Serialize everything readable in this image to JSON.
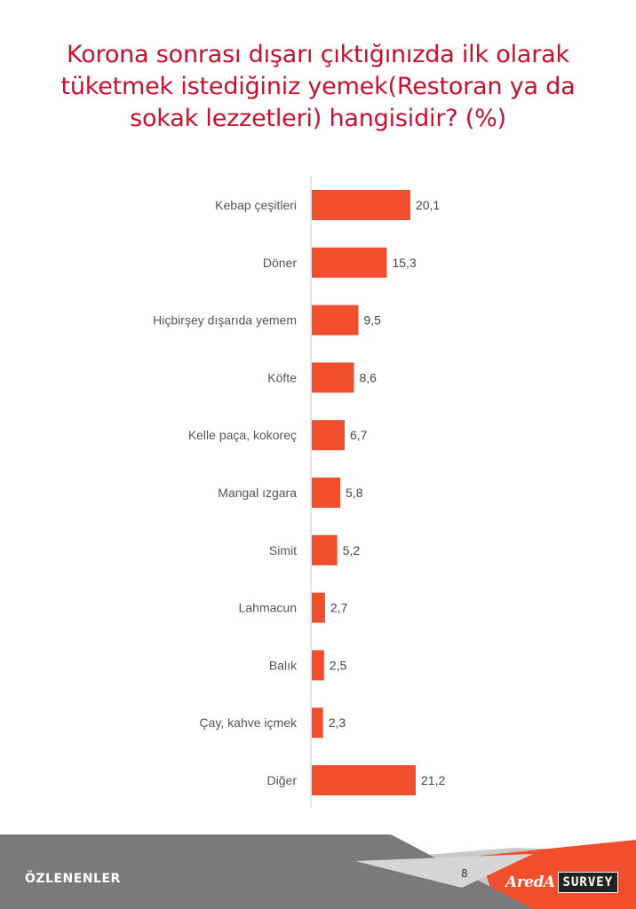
{
  "title": "Korona sonrası dışarı çıktığınızda ilk olarak tüketmek istediğiniz yemek(Restoran ya da sokak lezzetleri) hangisidir? (%)",
  "chart_data": {
    "type": "bar",
    "orientation": "horizontal",
    "title": "Korona sonrası dışarı çıktığınızda ilk olarak tüketmek istediğiniz yemek(Restoran ya da sokak lezzetleri) hangisidir? (%)",
    "categories": [
      "Kebap çeşitleri",
      "Döner",
      "Hiçbirşey dışarıda yemem",
      "Köfte",
      "Kelle paça, kokoreç",
      "Mangal ızgara",
      "Simit",
      "Lahmacun",
      "Balık",
      "Çay, kahve içmek",
      "Diğer"
    ],
    "values": [
      20.1,
      15.3,
      9.5,
      8.6,
      6.7,
      5.8,
      5.2,
      2.7,
      2.5,
      2.3,
      21.2
    ],
    "value_labels": [
      "20,1",
      "15,3",
      "9,5",
      "8,6",
      "6,7",
      "5,8",
      "5,2",
      "2,7",
      "2,5",
      "2,3",
      "21,2"
    ],
    "bar_color": "#f04e2c",
    "grid": false,
    "legend": "none"
  },
  "footer": {
    "section_label": "ÖZLENENLER",
    "page_number": "8",
    "logo_brand": "AredA",
    "logo_survey": "SURVEY"
  },
  "colors": {
    "title": "#c8102e",
    "footer_dark": "#7a7a7a",
    "footer_light": "#c9c9c9",
    "footer_accent": "#f04e2c"
  }
}
